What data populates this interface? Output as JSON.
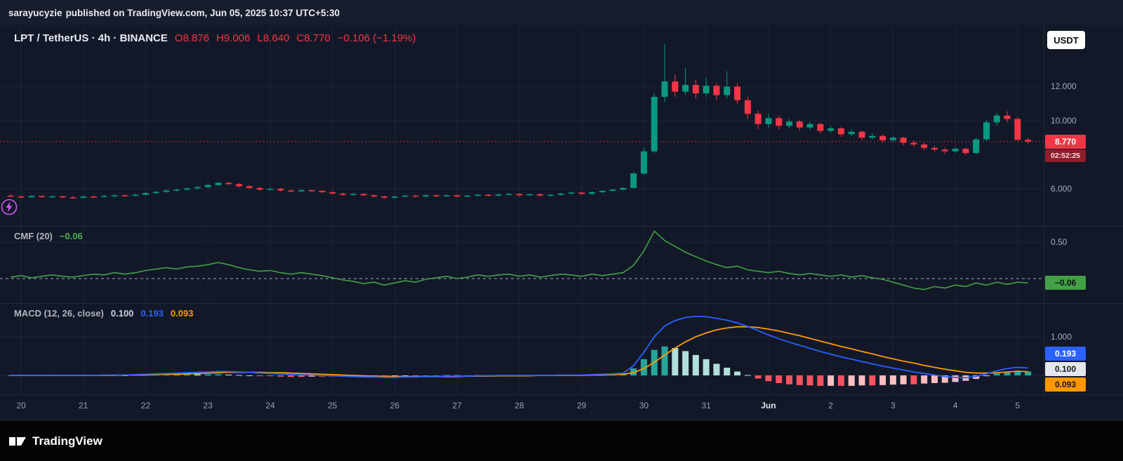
{
  "topbar": {
    "user": "sarayucyzie",
    "text": "published on TradingView.com, Jun 05, 2025 10:37 UTC+5:30"
  },
  "header": {
    "symbol": "LPT / TetherUS · 4h · BINANCE",
    "open": "O8.876",
    "high": "H9.006",
    "low": "L8.640",
    "close": "C8.770",
    "change": "−0.106 (−1.19%)",
    "currency_button": "USDT"
  },
  "price_axis": {
    "gridlines": [
      {
        "label": "12.000",
        "value": 12.0
      },
      {
        "label": "10.000",
        "value": 10.0
      },
      {
        "label": "6.000",
        "value": 6.0
      }
    ],
    "last": {
      "price": "8.770",
      "countdown": "02:52:25"
    }
  },
  "cmf_pane": {
    "title": "CMF (20)",
    "value": "−0.06",
    "axis_label": {
      "label": "0.50",
      "value": 0.5
    },
    "badge": "−0.06"
  },
  "macd_pane": {
    "title": "MACD (12, 26, close)",
    "hist_value": "0.100",
    "macd_value": "0.193",
    "signal_value": "0.093",
    "axis_label": {
      "label": "1.000",
      "value": 1.0
    },
    "badges": {
      "macd": "0.193",
      "hist": "0.100",
      "signal": "0.093"
    }
  },
  "time_axis": [
    {
      "label": "20"
    },
    {
      "label": "21"
    },
    {
      "label": "22"
    },
    {
      "label": "23"
    },
    {
      "label": "24"
    },
    {
      "label": "25"
    },
    {
      "label": "26"
    },
    {
      "label": "27"
    },
    {
      "label": "28"
    },
    {
      "label": "29"
    },
    {
      "label": "30"
    },
    {
      "label": "31"
    },
    {
      "label": "Jun",
      "major": true
    },
    {
      "label": "2"
    },
    {
      "label": "3"
    },
    {
      "label": "4"
    },
    {
      "label": "5"
    }
  ],
  "footer": {
    "brand": "TradingView"
  },
  "colors": {
    "up": "#089981",
    "down": "#f23645",
    "price_line": "#f23645",
    "grid": "rgba(170,183,214,0.07)",
    "cmf_line": "#43a047",
    "cmf_zero": "rgba(196,186,224,0.85)",
    "macd_line": "#2962ff",
    "signal_line": "#ff9800",
    "hist_grow_above": "#26a69a",
    "hist_fall_above": "#b2dfdb",
    "hist_fall_below": "#f7525f",
    "hist_grow_below": "#fbbdbf",
    "bolt": "#d357f0"
  },
  "chart_data": [
    {
      "type": "candlestick",
      "title": "LPT / TetherUS · 4h · BINANCE",
      "x_range": [
        "May 20",
        "Jun 5"
      ],
      "ylim": [
        3.82,
        15.6
      ],
      "price_line": 8.77,
      "grid_values": [
        12.0,
        10.0,
        6.0
      ],
      "last_candle": {
        "o": 8.876,
        "h": 9.006,
        "l": 8.64,
        "c": 8.77,
        "change": -0.106,
        "change_pct": -1.19
      },
      "ohlc": [
        [
          5.6,
          5.68,
          5.52,
          5.55
        ],
        [
          5.55,
          5.62,
          5.45,
          5.5
        ],
        [
          5.5,
          5.64,
          5.48,
          5.58
        ],
        [
          5.58,
          5.63,
          5.46,
          5.52
        ],
        [
          5.52,
          5.62,
          5.48,
          5.56
        ],
        [
          5.56,
          5.6,
          5.44,
          5.5
        ],
        [
          5.5,
          5.58,
          5.42,
          5.48
        ],
        [
          5.48,
          5.6,
          5.44,
          5.55
        ],
        [
          5.55,
          5.61,
          5.47,
          5.52
        ],
        [
          5.52,
          5.64,
          5.49,
          5.58
        ],
        [
          5.58,
          5.68,
          5.52,
          5.62
        ],
        [
          5.62,
          5.68,
          5.54,
          5.6
        ],
        [
          5.6,
          5.72,
          5.56,
          5.65
        ],
        [
          5.65,
          5.8,
          5.6,
          5.75
        ],
        [
          5.75,
          5.88,
          5.7,
          5.82
        ],
        [
          5.82,
          5.96,
          5.76,
          5.9
        ],
        [
          5.9,
          6.02,
          5.84,
          5.95
        ],
        [
          5.95,
          6.08,
          5.88,
          6.02
        ],
        [
          6.02,
          6.16,
          5.96,
          6.1
        ],
        [
          6.1,
          6.28,
          6.04,
          6.22
        ],
        [
          6.22,
          6.42,
          6.16,
          6.35
        ],
        [
          6.35,
          6.4,
          6.2,
          6.28
        ],
        [
          6.28,
          6.34,
          6.08,
          6.15
        ],
        [
          6.15,
          6.22,
          5.98,
          6.05
        ],
        [
          6.05,
          6.12,
          5.88,
          5.95
        ],
        [
          5.95,
          6.08,
          5.9,
          6.0
        ],
        [
          6.0,
          6.05,
          5.84,
          5.9
        ],
        [
          5.9,
          5.97,
          5.78,
          5.85
        ],
        [
          5.85,
          5.99,
          5.8,
          5.92
        ],
        [
          5.92,
          5.97,
          5.82,
          5.88
        ],
        [
          5.88,
          5.93,
          5.74,
          5.8
        ],
        [
          5.8,
          5.86,
          5.66,
          5.72
        ],
        [
          5.72,
          5.78,
          5.58,
          5.65
        ],
        [
          5.65,
          5.77,
          5.6,
          5.7
        ],
        [
          5.7,
          5.75,
          5.56,
          5.62
        ],
        [
          5.62,
          5.68,
          5.48,
          5.55
        ],
        [
          5.55,
          5.6,
          5.4,
          5.48
        ],
        [
          5.48,
          5.6,
          5.43,
          5.55
        ],
        [
          5.55,
          5.66,
          5.5,
          5.6
        ],
        [
          5.6,
          5.65,
          5.48,
          5.55
        ],
        [
          5.55,
          5.68,
          5.5,
          5.62
        ],
        [
          5.62,
          5.67,
          5.52,
          5.58
        ],
        [
          5.58,
          5.68,
          5.53,
          5.62
        ],
        [
          5.62,
          5.66,
          5.49,
          5.55
        ],
        [
          5.55,
          5.65,
          5.5,
          5.6
        ],
        [
          5.6,
          5.7,
          5.55,
          5.65
        ],
        [
          5.65,
          5.69,
          5.54,
          5.6
        ],
        [
          5.6,
          5.72,
          5.55,
          5.67
        ],
        [
          5.67,
          5.75,
          5.62,
          5.7
        ],
        [
          5.7,
          5.74,
          5.56,
          5.62
        ],
        [
          5.62,
          5.73,
          5.57,
          5.68
        ],
        [
          5.68,
          5.72,
          5.54,
          5.6
        ],
        [
          5.6,
          5.7,
          5.55,
          5.65
        ],
        [
          5.65,
          5.77,
          5.6,
          5.72
        ],
        [
          5.72,
          5.83,
          5.66,
          5.78
        ],
        [
          5.78,
          5.82,
          5.64,
          5.7
        ],
        [
          5.7,
          5.85,
          5.65,
          5.8
        ],
        [
          5.8,
          5.93,
          5.74,
          5.88
        ],
        [
          5.88,
          6.0,
          5.82,
          5.95
        ],
        [
          5.95,
          6.1,
          5.89,
          6.05
        ],
        [
          6.05,
          7.0,
          6.0,
          6.9
        ],
        [
          6.9,
          8.4,
          6.82,
          8.2
        ],
        [
          8.2,
          11.6,
          8.1,
          11.4
        ],
        [
          11.4,
          14.5,
          11.1,
          12.3
        ],
        [
          12.3,
          12.7,
          11.4,
          11.7
        ],
        [
          11.7,
          13.1,
          11.5,
          12.1
        ],
        [
          12.1,
          12.4,
          11.3,
          11.6
        ],
        [
          11.6,
          12.5,
          11.4,
          12.05
        ],
        [
          12.05,
          12.2,
          11.2,
          11.5
        ],
        [
          11.5,
          12.9,
          11.3,
          12.0
        ],
        [
          12.0,
          12.2,
          11.0,
          11.2
        ],
        [
          11.2,
          11.4,
          10.1,
          10.4
        ],
        [
          10.4,
          10.6,
          9.5,
          9.8
        ],
        [
          9.8,
          10.4,
          9.6,
          10.15
        ],
        [
          10.15,
          10.3,
          9.5,
          9.7
        ],
        [
          9.7,
          10.1,
          9.55,
          9.95
        ],
        [
          9.95,
          10.05,
          9.4,
          9.6
        ],
        [
          9.6,
          9.95,
          9.45,
          9.8
        ],
        [
          9.8,
          9.9,
          9.25,
          9.4
        ],
        [
          9.4,
          9.7,
          9.3,
          9.55
        ],
        [
          9.55,
          9.62,
          9.05,
          9.2
        ],
        [
          9.2,
          9.5,
          9.1,
          9.35
        ],
        [
          9.35,
          9.42,
          8.85,
          9.0
        ],
        [
          9.0,
          9.25,
          8.9,
          9.1
        ],
        [
          9.1,
          9.18,
          8.7,
          8.85
        ],
        [
          8.85,
          9.1,
          8.75,
          9.0
        ],
        [
          9.0,
          9.06,
          8.55,
          8.7
        ],
        [
          8.7,
          8.82,
          8.45,
          8.6
        ],
        [
          8.6,
          8.7,
          8.28,
          8.4
        ],
        [
          8.4,
          8.52,
          8.18,
          8.3
        ],
        [
          8.3,
          8.42,
          8.05,
          8.2
        ],
        [
          8.2,
          8.45,
          8.1,
          8.35
        ],
        [
          8.35,
          8.42,
          7.95,
          8.1
        ],
        [
          8.1,
          9.0,
          8.02,
          8.9
        ],
        [
          8.9,
          10.05,
          8.8,
          9.9
        ],
        [
          9.9,
          10.45,
          9.7,
          10.3
        ],
        [
          10.3,
          10.55,
          9.9,
          10.1
        ],
        [
          10.1,
          10.2,
          8.8,
          8.876
        ],
        [
          8.876,
          9.006,
          8.64,
          8.77
        ]
      ]
    },
    {
      "type": "line",
      "title": "CMF (20)",
      "ylim": [
        -0.337,
        0.721
      ],
      "grid_value": 0.5,
      "last": -0.06,
      "values": [
        0.02,
        0.04,
        0.01,
        0.03,
        0.05,
        0.03,
        0.02,
        0.04,
        0.06,
        0.05,
        0.08,
        0.06,
        0.08,
        0.11,
        0.13,
        0.15,
        0.13,
        0.16,
        0.17,
        0.19,
        0.22,
        0.19,
        0.15,
        0.12,
        0.1,
        0.11,
        0.08,
        0.06,
        0.08,
        0.06,
        0.04,
        0.01,
        -0.02,
        -0.04,
        -0.07,
        -0.05,
        -0.09,
        -0.06,
        -0.03,
        -0.05,
        -0.01,
        0.01,
        0.03,
        0.0,
        0.02,
        0.05,
        0.03,
        0.05,
        0.06,
        0.03,
        0.05,
        0.02,
        0.04,
        0.06,
        0.05,
        0.03,
        0.06,
        0.04,
        0.06,
        0.08,
        0.18,
        0.38,
        0.65,
        0.52,
        0.44,
        0.36,
        0.3,
        0.24,
        0.19,
        0.15,
        0.17,
        0.12,
        0.1,
        0.08,
        0.1,
        0.07,
        0.05,
        0.07,
        0.05,
        0.03,
        0.05,
        0.02,
        0.04,
        0.01,
        -0.01,
        -0.05,
        -0.09,
        -0.13,
        -0.15,
        -0.11,
        -0.13,
        -0.09,
        -0.11,
        -0.06,
        -0.09,
        -0.05,
        -0.08,
        -0.05,
        -0.06
      ]
    },
    {
      "type": "bar",
      "title": "MACD (12, 26, close)",
      "ylim": [
        -0.49,
        1.873
      ],
      "grid_value": 1.0,
      "last": {
        "macd": 0.193,
        "signal": 0.093,
        "hist": 0.1
      },
      "hist_note": "histogram = macd - signal",
      "macd": [
        0.0,
        0.0,
        0.0,
        0.0,
        0.0,
        0.0,
        0.0,
        0.0,
        0.0,
        0.01,
        0.01,
        0.01,
        0.02,
        0.03,
        0.04,
        0.05,
        0.06,
        0.07,
        0.08,
        0.09,
        0.1,
        0.1,
        0.09,
        0.08,
        0.06,
        0.05,
        0.04,
        0.02,
        0.01,
        0.01,
        0.0,
        -0.01,
        -0.02,
        -0.03,
        -0.04,
        -0.04,
        -0.05,
        -0.05,
        -0.04,
        -0.04,
        -0.03,
        -0.03,
        -0.02,
        -0.02,
        -0.02,
        -0.01,
        -0.01,
        0.0,
        0.0,
        0.0,
        0.0,
        0.0,
        0.0,
        0.01,
        0.01,
        0.01,
        0.02,
        0.03,
        0.04,
        0.06,
        0.25,
        0.6,
        1.0,
        1.28,
        1.42,
        1.5,
        1.53,
        1.52,
        1.48,
        1.43,
        1.36,
        1.27,
        1.16,
        1.05,
        0.95,
        0.86,
        0.78,
        0.7,
        0.62,
        0.55,
        0.48,
        0.42,
        0.36,
        0.3,
        0.24,
        0.19,
        0.14,
        0.09,
        0.05,
        0.01,
        -0.03,
        -0.05,
        -0.06,
        -0.03,
        0.04,
        0.12,
        0.18,
        0.21,
        0.193
      ],
      "signal": [
        0.0,
        0.0,
        0.0,
        0.0,
        0.0,
        0.0,
        0.0,
        0.0,
        0.0,
        0.0,
        0.0,
        0.01,
        0.01,
        0.01,
        0.02,
        0.03,
        0.03,
        0.04,
        0.05,
        0.06,
        0.07,
        0.08,
        0.08,
        0.08,
        0.08,
        0.07,
        0.07,
        0.06,
        0.05,
        0.04,
        0.03,
        0.02,
        0.01,
        0.0,
        -0.01,
        -0.02,
        -0.02,
        -0.03,
        -0.03,
        -0.03,
        -0.03,
        -0.03,
        -0.03,
        -0.03,
        -0.02,
        -0.02,
        -0.02,
        -0.01,
        -0.01,
        -0.01,
        -0.01,
        0.0,
        0.0,
        0.0,
        0.0,
        0.0,
        0.01,
        0.01,
        0.02,
        0.03,
        0.07,
        0.18,
        0.34,
        0.53,
        0.71,
        0.87,
        1.0,
        1.1,
        1.18,
        1.23,
        1.26,
        1.26,
        1.24,
        1.2,
        1.15,
        1.09,
        1.03,
        0.96,
        0.89,
        0.82,
        0.75,
        0.69,
        0.62,
        0.56,
        0.49,
        0.43,
        0.37,
        0.32,
        0.26,
        0.21,
        0.16,
        0.12,
        0.08,
        0.06,
        0.06,
        0.07,
        0.09,
        0.11,
        0.093
      ]
    }
  ]
}
